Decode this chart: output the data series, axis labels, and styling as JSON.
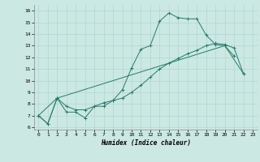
{
  "title": "",
  "xlabel": "Humidex (Indice chaleur)",
  "bg_color": "#cbe8e3",
  "grid_color": "#b0d8d0",
  "line_color": "#2a7a6a",
  "xlim": [
    -0.5,
    23.5
  ],
  "ylim": [
    5.8,
    16.5
  ],
  "xticks": [
    0,
    1,
    2,
    3,
    4,
    5,
    6,
    7,
    8,
    9,
    10,
    11,
    12,
    13,
    14,
    15,
    16,
    17,
    18,
    19,
    20,
    21,
    22,
    23
  ],
  "yticks": [
    6,
    7,
    8,
    9,
    10,
    11,
    12,
    13,
    14,
    15,
    16
  ],
  "line1_x": [
    0,
    1,
    2,
    3,
    4,
    5,
    6,
    7,
    8,
    9,
    10,
    11,
    12,
    13,
    14,
    15,
    16,
    17,
    18,
    19,
    20,
    21
  ],
  "line1_y": [
    7.0,
    6.3,
    8.5,
    7.3,
    7.3,
    6.8,
    7.8,
    7.8,
    8.3,
    9.2,
    11.1,
    12.7,
    13.0,
    15.1,
    15.8,
    15.4,
    15.3,
    15.3,
    13.9,
    13.1,
    13.0,
    12.1
  ],
  "line2_x": [
    0,
    1,
    2,
    3,
    4,
    5,
    6,
    7,
    8,
    9,
    10,
    11,
    12,
    13,
    14,
    15,
    16,
    17,
    18,
    19,
    20,
    21,
    22
  ],
  "line2_y": [
    7.0,
    6.3,
    8.5,
    7.8,
    7.5,
    7.5,
    7.8,
    8.1,
    8.3,
    8.5,
    9.0,
    9.6,
    10.3,
    11.0,
    11.5,
    11.9,
    12.3,
    12.6,
    13.0,
    13.2,
    13.1,
    12.8,
    10.6
  ],
  "line3_x": [
    0,
    2,
    20,
    22
  ],
  "line3_y": [
    7.0,
    8.5,
    13.0,
    10.6
  ]
}
